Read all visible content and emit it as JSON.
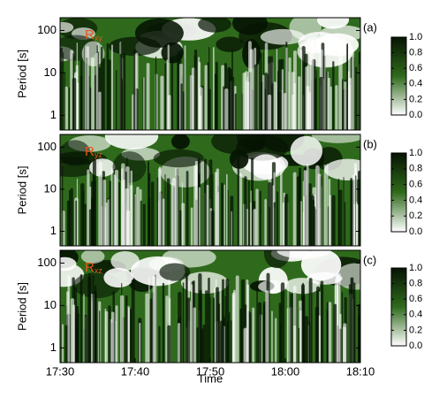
{
  "chart_data": [
    {
      "type": "heatmap",
      "panel_label": "(a)",
      "annotation": {
        "text": "R",
        "subscript": "xy"
      },
      "ylabel": "Period [s]",
      "ylim": [
        0.45,
        200
      ],
      "log_scale": true,
      "yticks": [
        1,
        10,
        100
      ],
      "colormap": [
        "#ffffff",
        "#2f6a1c",
        "#061403"
      ],
      "colorbar": {
        "lim": [
          0,
          1
        ],
        "ticks": [
          {
            "value": 0,
            "label": "0.0"
          },
          {
            "value": 0.2,
            "label": "0.2"
          },
          {
            "value": 0.4,
            "label": "0.4"
          },
          {
            "value": 0.6,
            "label": "0.6"
          },
          {
            "value": 0.8,
            "label": "0.8"
          },
          {
            "value": 1,
            "label": "1.0"
          }
        ]
      }
    },
    {
      "type": "heatmap",
      "panel_label": "(b)",
      "annotation": {
        "text": "R",
        "subscript": "yz"
      },
      "ylabel": "Period [s]",
      "ylim": [
        0.45,
        200
      ],
      "log_scale": true,
      "yticks": [
        1,
        10,
        100
      ],
      "colormap": [
        "#ffffff",
        "#2f6a1c",
        "#061403"
      ],
      "colorbar": {
        "lim": [
          0,
          1
        ],
        "ticks": [
          {
            "value": 0,
            "label": "0.0"
          },
          {
            "value": 0.2,
            "label": "0.2"
          },
          {
            "value": 0.4,
            "label": "0.4"
          },
          {
            "value": 0.6,
            "label": "0.6"
          },
          {
            "value": 0.8,
            "label": "0.8"
          },
          {
            "value": 1,
            "label": "1.0"
          }
        ]
      }
    },
    {
      "type": "heatmap",
      "panel_label": "(c)",
      "annotation": {
        "text": "R",
        "subscript": "xz"
      },
      "ylabel": "Period [s]",
      "ylim": [
        0.45,
        200
      ],
      "log_scale": true,
      "yticks": [
        1,
        10,
        100
      ],
      "colormap": [
        "#ffffff",
        "#2f6a1c",
        "#061403"
      ],
      "colorbar": {
        "lim": [
          0,
          1
        ],
        "ticks": [
          {
            "value": 0,
            "label": "0.0"
          },
          {
            "value": 0.2,
            "label": "0.2"
          },
          {
            "value": 0.4,
            "label": "0.4"
          },
          {
            "value": 0.6,
            "label": "0.6"
          },
          {
            "value": 0.8,
            "label": "0.8"
          },
          {
            "value": 1,
            "label": "1.0"
          }
        ]
      },
      "xlabel": "Time",
      "xticks": [
        "17:30",
        "17:40",
        "17:50",
        "18:00",
        "18:10"
      ]
    }
  ]
}
